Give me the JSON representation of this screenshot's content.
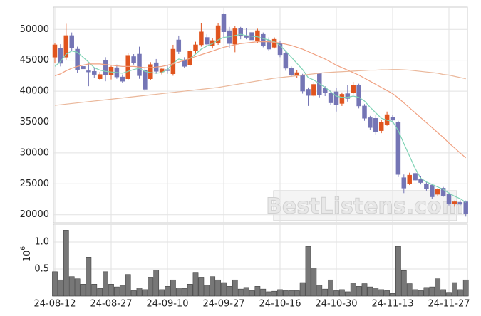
{
  "watermark": "BestListens.com",
  "chart_data": [
    {
      "type": "candlestick",
      "categories": [
        "24-08-12",
        null,
        null,
        null,
        null,
        null,
        null,
        null,
        null,
        null,
        "24-08-27",
        null,
        null,
        null,
        null,
        null,
        null,
        null,
        null,
        null,
        "24-09-10",
        null,
        null,
        null,
        null,
        null,
        null,
        null,
        null,
        null,
        "24-09-27",
        null,
        null,
        null,
        null,
        null,
        null,
        null,
        null,
        null,
        "24-10-16",
        null,
        null,
        null,
        null,
        null,
        null,
        null,
        null,
        null,
        "24-10-30",
        null,
        null,
        null,
        null,
        null,
        null,
        null,
        null,
        null,
        "24-11-13",
        null,
        null,
        null,
        null,
        null,
        null,
        null,
        null,
        null,
        "24-11-27",
        null,
        null,
        null
      ],
      "open": [
        45500,
        47000,
        45500,
        49000,
        46800,
        44000,
        43300,
        43200,
        42000,
        45000,
        42600,
        43800,
        42300,
        42000,
        45600,
        46000,
        43400,
        42000,
        44600,
        43100,
        43500,
        42800,
        48300,
        45000,
        44200,
        46500,
        47500,
        48700,
        47400,
        47800,
        52500,
        49800,
        47600,
        50200,
        48900,
        49500,
        48100,
        49200,
        48200,
        47100,
        47700,
        46200,
        43700,
        42500,
        42600,
        40300,
        39300,
        42900,
        40500,
        39700,
        39900,
        38000,
        39600,
        39700,
        41000,
        37600,
        35700,
        35600,
        33600,
        34600,
        35800,
        35000,
        26000,
        25000,
        26700,
        25800,
        25000,
        24800,
        23300,
        24300,
        23300,
        21800,
        22000,
        22100
      ],
      "high": [
        47800,
        47600,
        50900,
        49500,
        47200,
        44700,
        44500,
        43800,
        43100,
        45500,
        44100,
        44300,
        42700,
        46200,
        46000,
        47200,
        43800,
        44700,
        45200,
        43800,
        44200,
        47500,
        49000,
        45500,
        46800,
        48000,
        51000,
        49200,
        48600,
        51000,
        52600,
        50400,
        50500,
        50400,
        50200,
        50000,
        50100,
        49500,
        48700,
        48700,
        48200,
        46600,
        44000,
        43400,
        42800,
        40600,
        41500,
        43000,
        40800,
        40100,
        40500,
        39800,
        41000,
        41500,
        41200,
        37900,
        36000,
        36100,
        35300,
        36700,
        36200,
        35200,
        26500,
        26800,
        26900,
        26300,
        25300,
        25000,
        24300,
        24500,
        23600,
        22300,
        22400,
        22300
      ],
      "low": [
        44500,
        44000,
        45000,
        46500,
        43000,
        43200,
        40800,
        42200,
        41800,
        41600,
        41900,
        42000,
        41300,
        41800,
        44300,
        42000,
        40000,
        41800,
        42800,
        42700,
        42800,
        42500,
        46000,
        43800,
        44000,
        46000,
        47200,
        47300,
        46900,
        47500,
        48600,
        47000,
        46300,
        48400,
        48400,
        48000,
        47800,
        47100,
        46500,
        46900,
        45500,
        43300,
        42300,
        42200,
        39600,
        37600,
        39100,
        39000,
        39200,
        37800,
        36700,
        37600,
        38300,
        39500,
        37200,
        35200,
        33700,
        33000,
        33200,
        34400,
        34900,
        26200,
        23500,
        24800,
        25400,
        24900,
        23900,
        22500,
        23000,
        22900,
        21500,
        21300,
        21500,
        19700
      ],
      "close": [
        47500,
        44500,
        49000,
        47000,
        43500,
        43600,
        43100,
        42700,
        42700,
        42600,
        43900,
        42300,
        41600,
        45800,
        44600,
        42500,
        40300,
        44300,
        43200,
        43600,
        43300,
        46800,
        46400,
        44000,
        46500,
        47500,
        49600,
        47600,
        48200,
        50600,
        49600,
        47700,
        50100,
        48900,
        48700,
        48300,
        49800,
        47400,
        46800,
        48400,
        45900,
        43700,
        42600,
        43000,
        40000,
        39300,
        41100,
        39400,
        39700,
        38100,
        37800,
        39500,
        38800,
        41000,
        37600,
        35600,
        34100,
        33400,
        35000,
        36200,
        35300,
        26500,
        24300,
        26400,
        25600,
        25200,
        24200,
        22900,
        24100,
        23100,
        21800,
        22100,
        21700,
        20200
      ],
      "up_color": "#e0541e",
      "down_color": "#7475b5",
      "series": [
        {
          "color": "#7fd3b5",
          "values": [
            44000,
            44800,
            46000,
            46500,
            46300,
            45500,
            44700,
            43800,
            43400,
            43200,
            43100,
            43000,
            42900,
            43200,
            43500,
            43700,
            43200,
            43000,
            42900,
            43000,
            43500,
            44500,
            45200,
            45000,
            45300,
            46000,
            46800,
            47300,
            47700,
            48300,
            48700,
            48800,
            49000,
            49200,
            49000,
            48900,
            48800,
            48500,
            48300,
            48000,
            47400,
            46500,
            45500,
            44500,
            43500,
            42200,
            41800,
            41200,
            40600,
            39900,
            39200,
            39000,
            39000,
            39200,
            39000,
            38400,
            37400,
            36500,
            35600,
            35300,
            35100,
            33600,
            31500,
            29500,
            27500,
            25900,
            25300,
            24900,
            24500,
            24100,
            23500,
            23000,
            22600,
            22000
          ]
        },
        {
          "color": "#f0a080",
          "values": [
            42500,
            42800,
            43300,
            43700,
            44000,
            44200,
            44400,
            44400,
            44400,
            44300,
            44200,
            44100,
            44000,
            44000,
            44000,
            43900,
            43800,
            43800,
            43900,
            44000,
            44200,
            44400,
            44700,
            45000,
            45300,
            45600,
            45900,
            46200,
            46500,
            46800,
            47100,
            47300,
            47500,
            47700,
            47800,
            47900,
            48000,
            48000,
            48000,
            47900,
            47800,
            47600,
            47400,
            47100,
            46800,
            46400,
            46000,
            45600,
            45200,
            44700,
            44200,
            43800,
            43400,
            43000,
            42600,
            42100,
            41600,
            41100,
            40600,
            40100,
            39600,
            38900,
            38100,
            37300,
            36500,
            35700,
            34900,
            34100,
            33300,
            32500,
            31600,
            30800,
            30000,
            29200
          ]
        },
        {
          "color": "#eab79a",
          "values": [
            37700,
            37800,
            37900,
            38000,
            38100,
            38200,
            38300,
            38400,
            38500,
            38600,
            38700,
            38800,
            38900,
            39000,
            39100,
            39200,
            39300,
            39400,
            39500,
            39600,
            39700,
            39800,
            39900,
            40000,
            40100,
            40200,
            40300,
            40400,
            40500,
            40600,
            40750,
            40900,
            41050,
            41200,
            41350,
            41500,
            41650,
            41800,
            41950,
            42100,
            42200,
            42300,
            42400,
            42500,
            42600,
            42700,
            42800,
            42900,
            43000,
            43050,
            43100,
            43150,
            43200,
            43250,
            43300,
            43350,
            43400,
            43400,
            43450,
            43450,
            43500,
            43500,
            43450,
            43400,
            43300,
            43200,
            43100,
            43000,
            42900,
            42700,
            42600,
            42400,
            42200,
            42000
          ]
        }
      ],
      "ylim": [
        18700,
        53600
      ],
      "yticks": [
        20000,
        25000,
        30000,
        35000,
        40000,
        45000,
        50000
      ],
      "grid": true
    },
    {
      "type": "bar",
      "color": "#777777",
      "ylabel": {
        "base": "10",
        "exponent": "6"
      },
      "values": [
        0.45,
        0.3,
        1.22,
        0.36,
        0.32,
        0.22,
        0.72,
        0.22,
        0.14,
        0.45,
        0.22,
        0.17,
        0.2,
        0.4,
        0.1,
        0.15,
        0.12,
        0.35,
        0.48,
        0.12,
        0.18,
        0.3,
        0.15,
        0.14,
        0.22,
        0.44,
        0.35,
        0.2,
        0.36,
        0.3,
        0.25,
        0.18,
        0.3,
        0.13,
        0.16,
        0.1,
        0.18,
        0.13,
        0.08,
        0.09,
        0.12,
        0.1,
        0.1,
        0.1,
        0.25,
        0.92,
        0.52,
        0.2,
        0.13,
        0.3,
        0.1,
        0.12,
        0.08,
        0.24,
        0.18,
        0.23,
        0.17,
        0.15,
        0.12,
        0.1,
        0.05,
        0.92,
        0.47,
        0.23,
        0.12,
        0.1,
        0.16,
        0.17,
        0.32,
        0.12,
        0.07,
        0.25,
        0.12,
        0.3
      ],
      "ylim": [
        0,
        1.33
      ],
      "yticks": [
        0.5,
        {
          "value": 1,
          "label": "1.0"
        }
      ],
      "grid": true
    }
  ]
}
